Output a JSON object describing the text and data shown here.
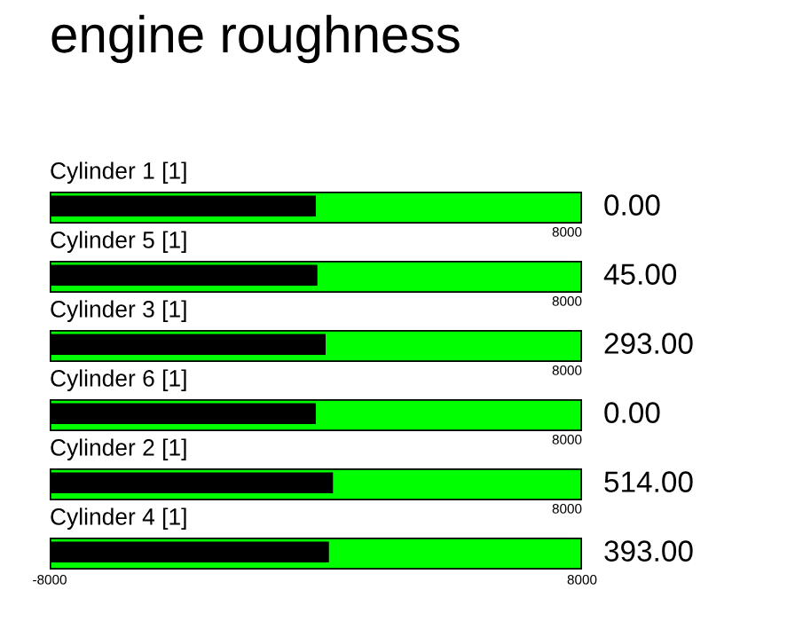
{
  "chart_data": [
    {
      "type": "bar",
      "orientation": "horizontal",
      "title": "engine roughness",
      "categories": [
        "Cylinder 1 [1]"
      ],
      "base": [
        -8000
      ],
      "values": [
        8000
      ],
      "xlim": [
        -8000,
        8000
      ],
      "annotations": [
        "0.00",
        "8000"
      ],
      "colors": [
        "#000000"
      ],
      "bands": [
        {
          "axis": "x",
          "from": -8000,
          "to": 8000,
          "color": "#00ff00"
        }
      ]
    },
    {
      "type": "bar",
      "orientation": "horizontal",
      "categories": [
        "Cylinder 5 [1]"
      ],
      "base": [
        -8000
      ],
      "values": [
        8045
      ],
      "xlim": [
        -8000,
        8000
      ],
      "annotations": [
        "45.00",
        "8000"
      ],
      "colors": [
        "#000000"
      ],
      "bands": [
        {
          "axis": "x",
          "from": -8000,
          "to": 8000,
          "color": "#00ff00"
        }
      ]
    },
    {
      "type": "bar",
      "orientation": "horizontal",
      "categories": [
        "Cylinder 3 [1]"
      ],
      "base": [
        -8000
      ],
      "values": [
        8293
      ],
      "xlim": [
        -8000,
        8000
      ],
      "annotations": [
        "293.00",
        "8000"
      ],
      "colors": [
        "#000000"
      ],
      "bands": [
        {
          "axis": "x",
          "from": -8000,
          "to": 8000,
          "color": "#00ff00"
        }
      ]
    },
    {
      "type": "bar",
      "orientation": "horizontal",
      "categories": [
        "Cylinder 6 [1]"
      ],
      "base": [
        -8000
      ],
      "values": [
        8000
      ],
      "xlim": [
        -8000,
        8000
      ],
      "annotations": [
        "0.00",
        "8000"
      ],
      "colors": [
        "#000000"
      ],
      "bands": [
        {
          "axis": "x",
          "from": -8000,
          "to": 8000,
          "color": "#00ff00"
        }
      ]
    },
    {
      "type": "bar",
      "orientation": "horizontal",
      "categories": [
        "Cylinder 2 [1]"
      ],
      "base": [
        -8000
      ],
      "values": [
        8514
      ],
      "xlim": [
        -8000,
        8000
      ],
      "annotations": [
        "514.00",
        "8000"
      ],
      "colors": [
        "#000000"
      ],
      "bands": [
        {
          "axis": "x",
          "from": -8000,
          "to": 8000,
          "color": "#00ff00"
        }
      ]
    },
    {
      "type": "bar",
      "orientation": "horizontal",
      "categories": [
        "Cylinder 4 [1]"
      ],
      "base": [
        -8000
      ],
      "values": [
        8393
      ],
      "xlim": [
        -8000,
        8000
      ],
      "xticks": [
        -8000,
        8000
      ],
      "annotations": [
        "393.00"
      ],
      "colors": [
        "#000000"
      ],
      "bands": [
        {
          "axis": "x",
          "from": -8000,
          "to": 8000,
          "color": "#00ff00"
        }
      ]
    }
  ]
}
